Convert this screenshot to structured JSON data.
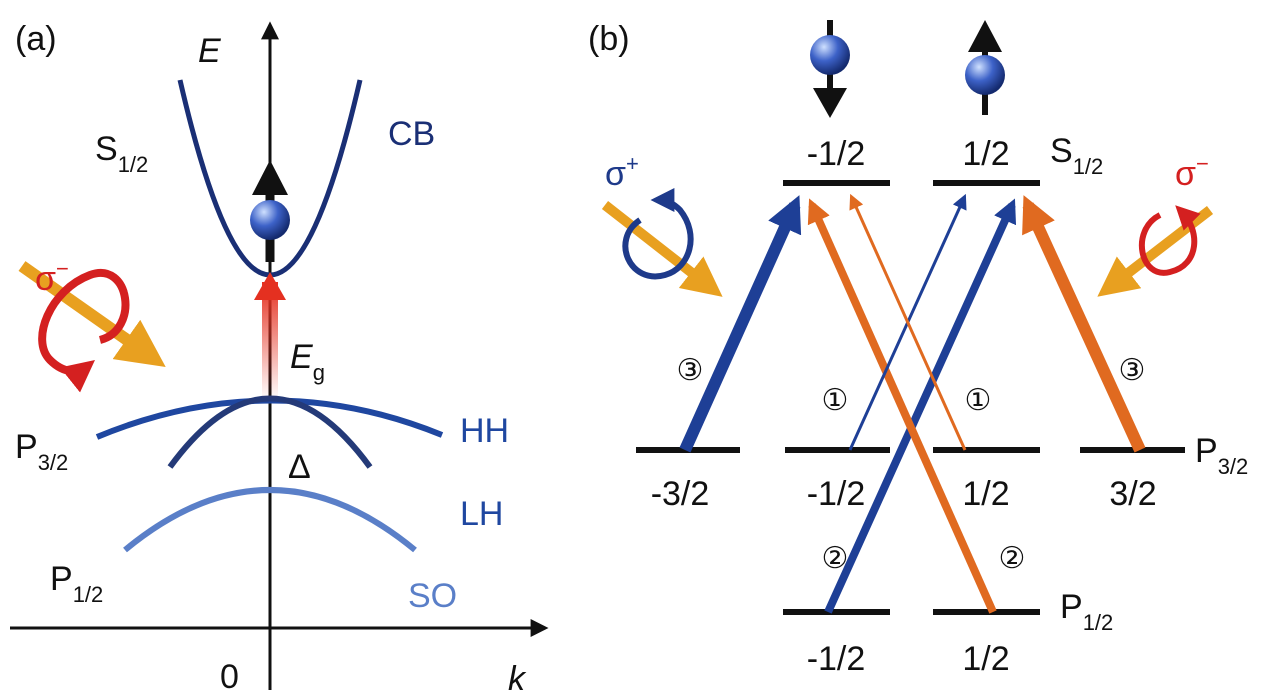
{
  "panel_a": {
    "label": "(a)",
    "energy_axis": "E",
    "k_axis": "k",
    "origin": "0",
    "conduction_state": {
      "main": "S",
      "sub": "1/2"
    },
    "conduction_band": "CB",
    "polarization": {
      "main": "σ",
      "sup": "−"
    },
    "gap": {
      "main": "E",
      "sub": "g"
    },
    "heavy_hole": "HH",
    "light_hole": "LH",
    "split_off": "SO",
    "splitting": "Δ",
    "p32_state": {
      "main": "P",
      "sub": "3/2"
    },
    "p12_state": {
      "main": "P",
      "sub": "1/2"
    }
  },
  "panel_b": {
    "label": "(b)",
    "s12_levels": [
      "-1/2",
      "1/2"
    ],
    "s12_state": {
      "main": "S",
      "sub": "1/2"
    },
    "p32_levels": [
      "-3/2",
      "-1/2",
      "1/2",
      "3/2"
    ],
    "p32_state": {
      "main": "P",
      "sub": "3/2"
    },
    "p12_levels": [
      "-1/2",
      "1/2"
    ],
    "p12_state": {
      "main": "P",
      "sub": "1/2"
    },
    "sigma_plus": {
      "main": "σ",
      "sup": "+"
    },
    "sigma_minus": {
      "main": "σ",
      "sup": "−"
    },
    "transition_weights": [
      "③",
      "①",
      "①",
      "③",
      "②",
      "②"
    ]
  }
}
